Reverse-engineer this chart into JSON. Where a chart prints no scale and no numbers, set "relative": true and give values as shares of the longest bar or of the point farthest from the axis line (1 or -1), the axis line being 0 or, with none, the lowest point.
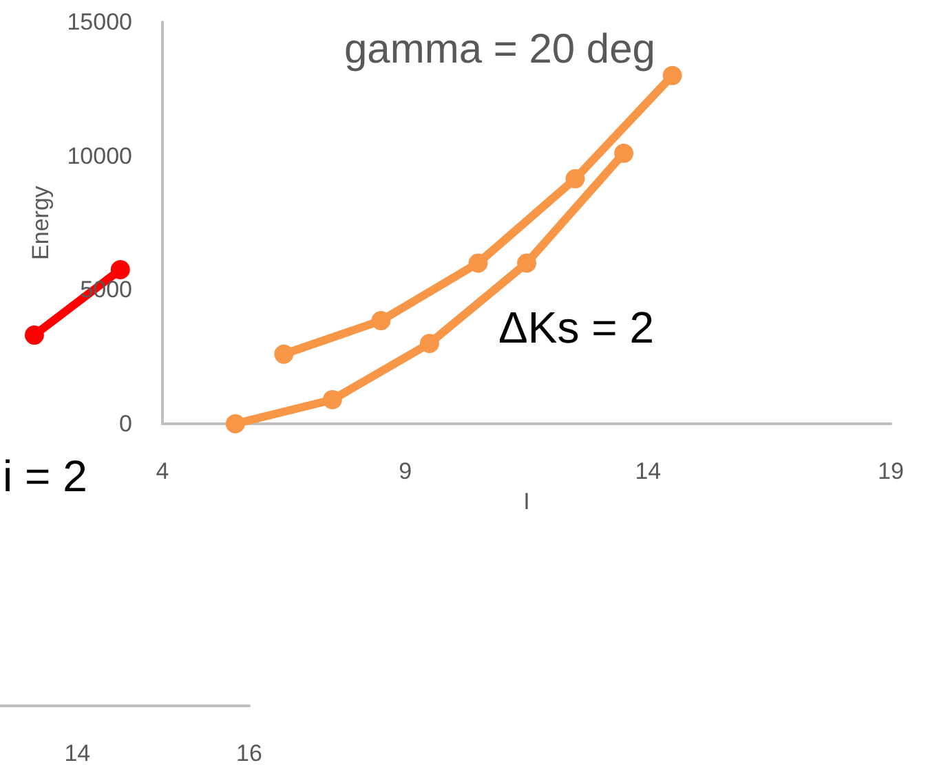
{
  "chart_data": [
    {
      "type": "line",
      "relative": true,
      "x": [
        13.5,
        14.5
      ],
      "xlim": [
        13.1,
        16
      ],
      "xticks": [
        14,
        16
      ],
      "tick_labels": "x",
      "marker": "circle",
      "grid": false,
      "series": [
        {
          "color": "#ff0000",
          "values": [
            0.85,
            1
          ]
        }
      ],
      "annotations": [
        "i = 2"
      ]
    },
    {
      "type": "line",
      "title": "gamma = 20 deg",
      "xlabel": "I",
      "ylabel": "Energy",
      "xlim": [
        4,
        19
      ],
      "xticks": [
        4,
        9,
        14,
        19
      ],
      "ylim": [
        0,
        15000
      ],
      "yticks": [
        0,
        5000,
        10000,
        15000
      ],
      "marker": "circle",
      "grid": false,
      "series": [
        {
          "color": "#f79646",
          "x": [
            6.5,
            8.5,
            10.5,
            12.5,
            14.5
          ],
          "values": [
            2600,
            3850,
            6000,
            9150,
            13000
          ]
        },
        {
          "color": "#f79646",
          "x": [
            5.5,
            7.5,
            9.5,
            11.5,
            13.5
          ],
          "values": [
            0,
            900,
            3000,
            6000,
            10100
          ]
        }
      ],
      "annotations": [
        "ΔKs = 2"
      ]
    }
  ]
}
